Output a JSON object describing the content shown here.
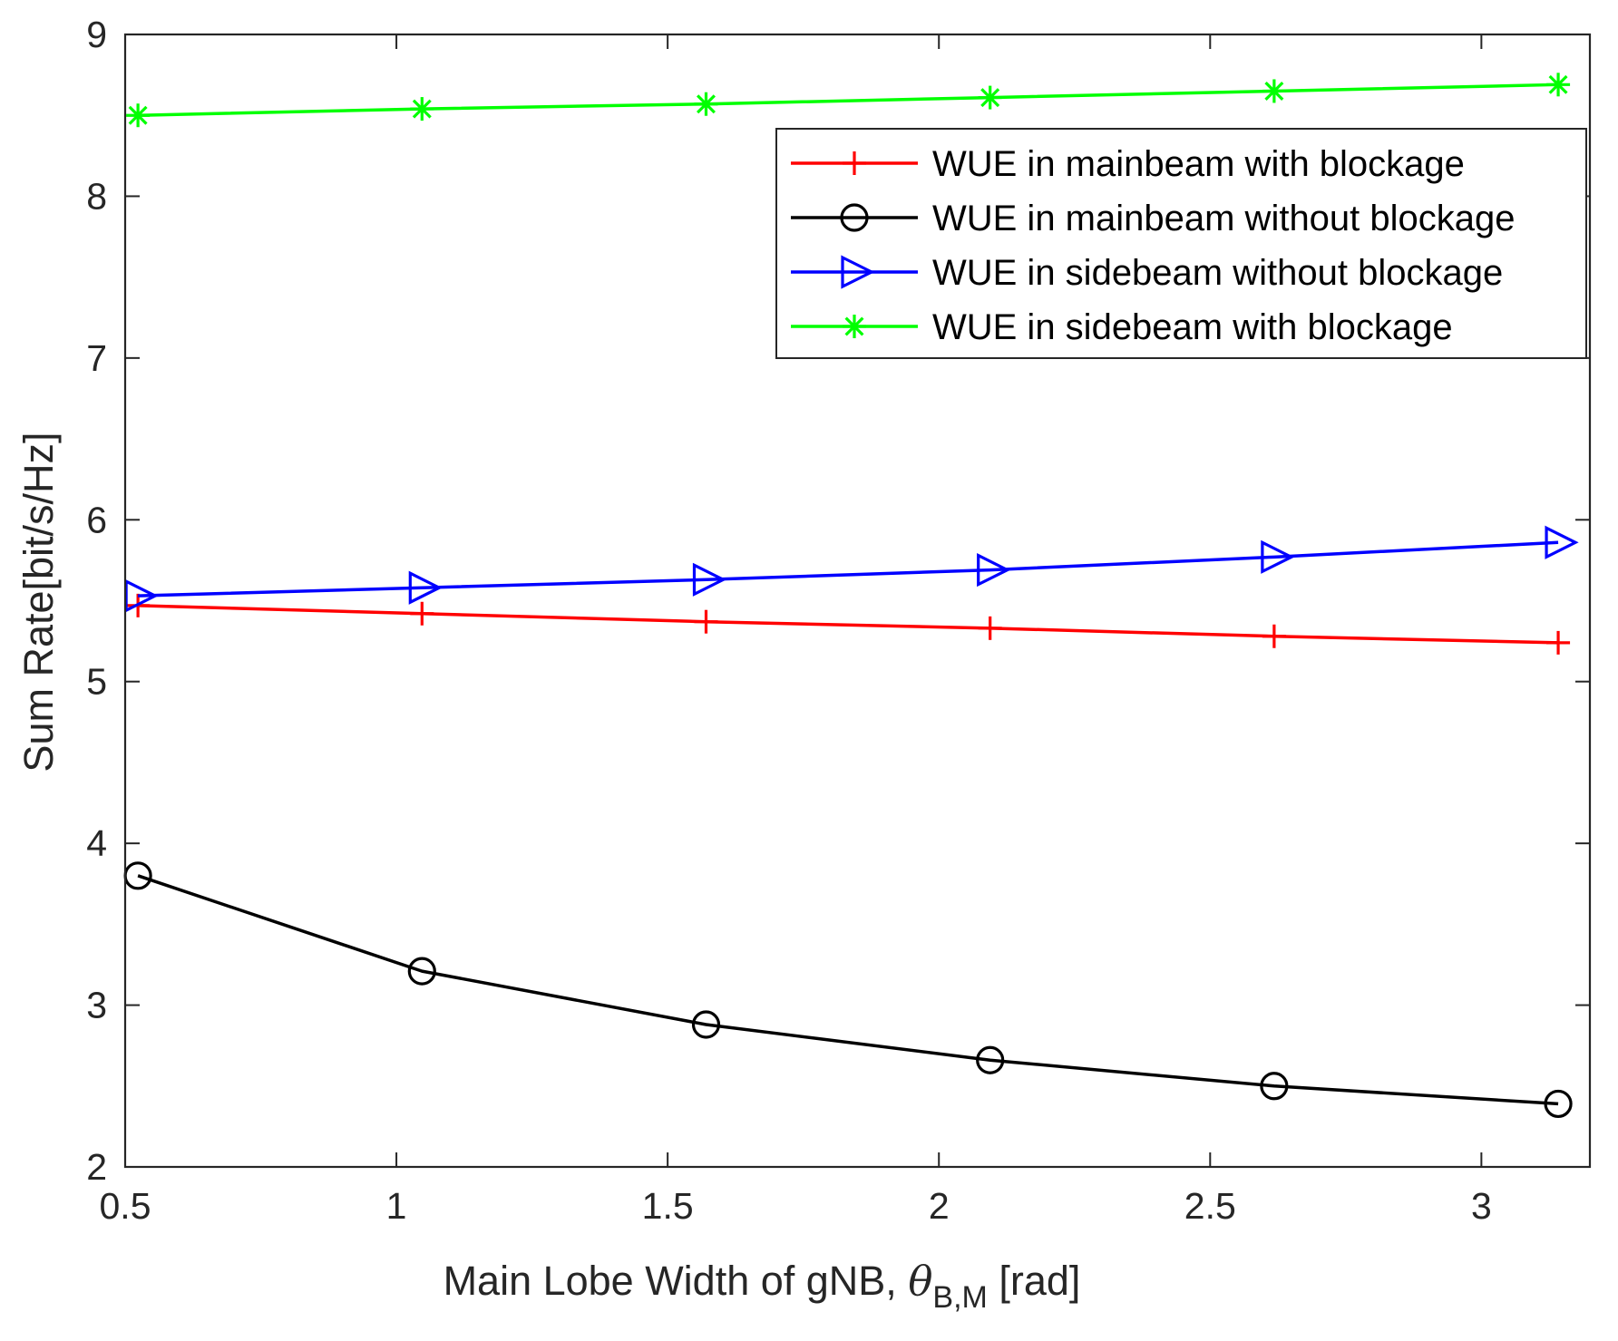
{
  "chart_data": {
    "type": "line",
    "title": "",
    "xlabel": {
      "main": "Main Lobe Width of gNB, ",
      "symbol": "θ",
      "subscript": "B,M",
      "unit": " [rad]"
    },
    "ylabel": "Sum Rate[bit/s/Hz]",
    "xlim": [
      0.5,
      3.2
    ],
    "ylim": [
      2,
      9
    ],
    "xticks": [
      0.5,
      1,
      1.5,
      2,
      2.5,
      3
    ],
    "xtick_labels": [
      "0.5",
      "1",
      "1.5",
      "2",
      "2.5",
      "3"
    ],
    "yticks": [
      2,
      3,
      4,
      5,
      6,
      7,
      8,
      9
    ],
    "ytick_labels": [
      "2",
      "3",
      "4",
      "5",
      "6",
      "7",
      "8",
      "9"
    ],
    "grid": false,
    "legend_position": "top-right",
    "x": [
      0.5236,
      1.0472,
      1.5708,
      2.0944,
      2.618,
      3.1416
    ],
    "series": [
      {
        "name": "WUE in mainbeam with blockage",
        "color": "#ff0000",
        "marker": "plus",
        "values": [
          5.47,
          5.42,
          5.37,
          5.33,
          5.28,
          5.24
        ]
      },
      {
        "name": "WUE in mainbeam without blockage",
        "color": "#000000",
        "marker": "circle",
        "values": [
          3.8,
          3.21,
          2.88,
          2.66,
          2.5,
          2.39
        ]
      },
      {
        "name": "WUE in sidebeam without blockage",
        "color": "#0000ff",
        "marker": "triangle-right",
        "values": [
          5.53,
          5.58,
          5.63,
          5.69,
          5.77,
          5.86
        ]
      },
      {
        "name": "WUE in sidebeam with blockage",
        "color": "#00ff00",
        "marker": "asterisk",
        "values": [
          8.5,
          8.54,
          8.57,
          8.61,
          8.65,
          8.69
        ]
      }
    ]
  }
}
